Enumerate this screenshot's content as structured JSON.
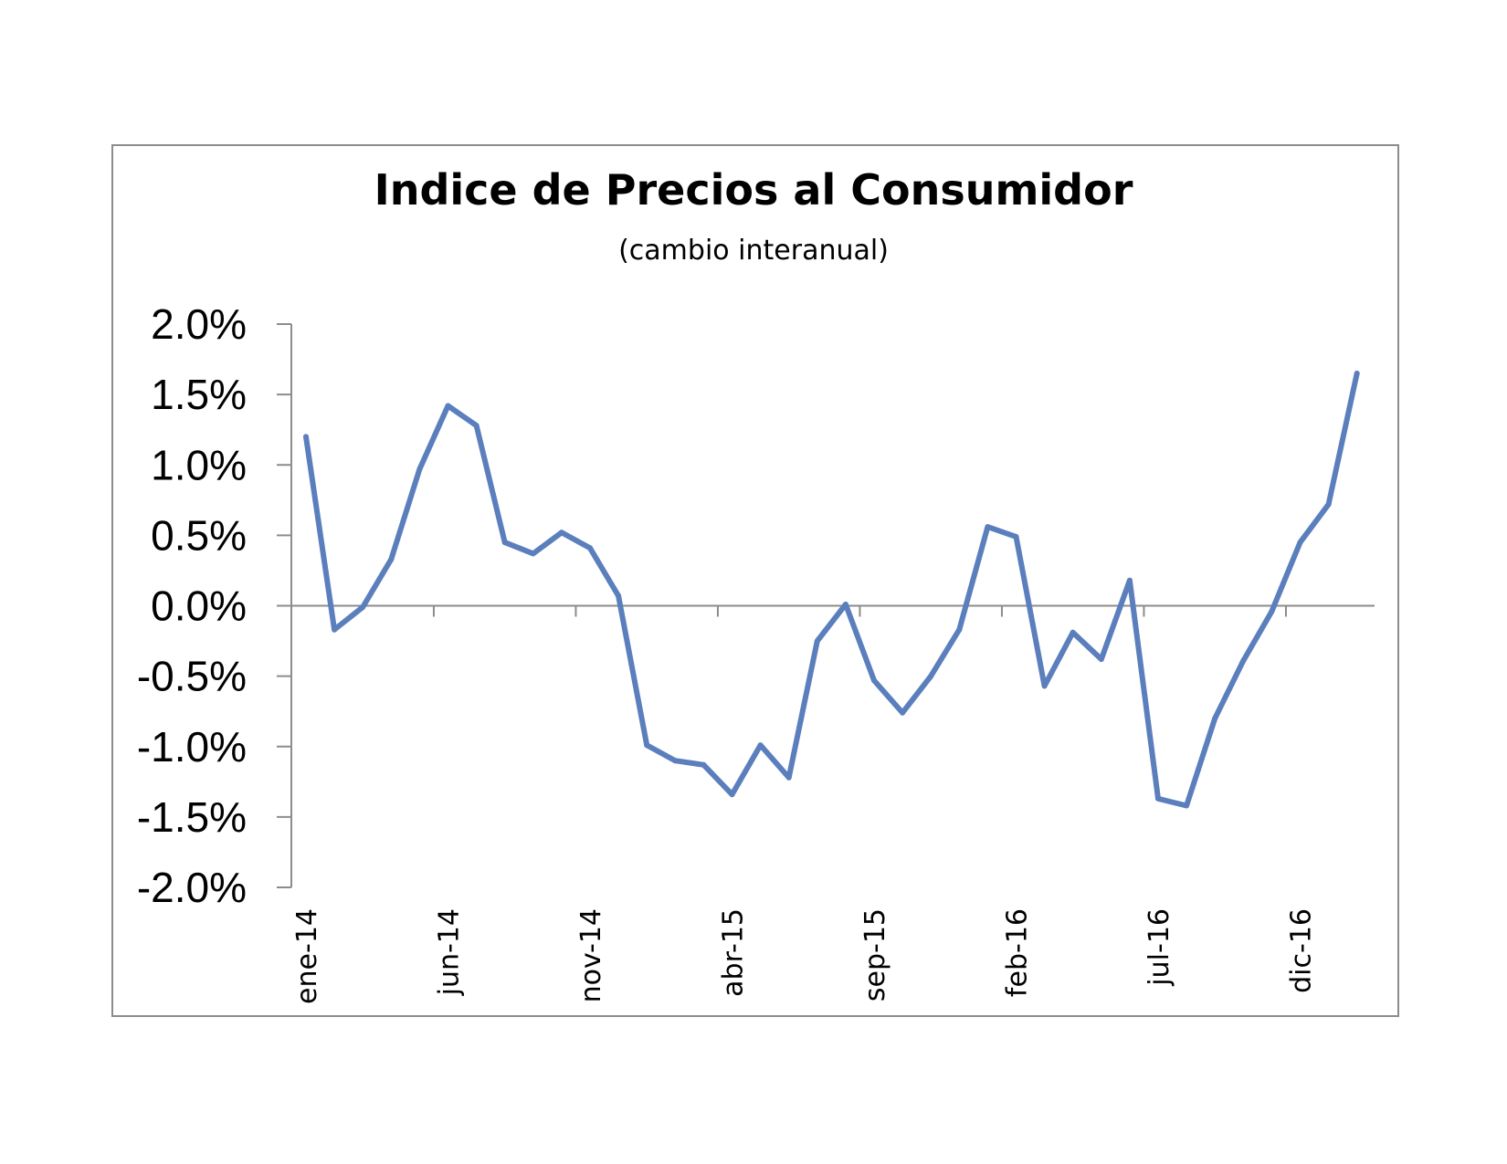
{
  "chart_data": {
    "type": "line",
    "title": "Indice de Precios al Consumidor",
    "subtitle": "(cambio interanual)",
    "xlabel": "",
    "ylabel": "",
    "ylim": [
      -2.0,
      2.0
    ],
    "y_ticks": [
      2.0,
      1.5,
      1.0,
      0.5,
      0.0,
      -0.5,
      -1.0,
      -1.5,
      -2.0
    ],
    "y_tick_labels": [
      "2.0%",
      "1.5%",
      "1.0%",
      "0.5%",
      "0.0%",
      "-0.5%",
      "-1.0%",
      "-1.5%",
      "-2.0%"
    ],
    "x_tick_labels": [
      {
        "index": 0,
        "label": "ene-14"
      },
      {
        "index": 5,
        "label": "jun-14"
      },
      {
        "index": 10,
        "label": "nov-14"
      },
      {
        "index": 15,
        "label": "abr-15"
      },
      {
        "index": 20,
        "label": "sep-15"
      },
      {
        "index": 25,
        "label": "feb-16"
      },
      {
        "index": 30,
        "label": "jul-16"
      },
      {
        "index": 35,
        "label": "dic-16"
      }
    ],
    "grid": false,
    "legend": "none",
    "line_color": "#5b7fbd",
    "series": [
      {
        "values": [
          1.2,
          -0.17,
          -0.01,
          0.33,
          0.97,
          1.42,
          1.28,
          0.45,
          0.37,
          0.52,
          0.41,
          0.07,
          -0.99,
          -1.1,
          -1.13,
          -1.34,
          -0.99,
          -1.22,
          -0.25,
          0.01,
          -0.53,
          -0.76,
          -0.5,
          -0.17,
          0.56,
          0.49,
          -0.57,
          -0.19,
          -0.38,
          0.18,
          -1.37,
          -1.42,
          -0.8,
          -0.39,
          -0.04,
          0.45,
          0.72,
          1.65
        ]
      }
    ]
  }
}
